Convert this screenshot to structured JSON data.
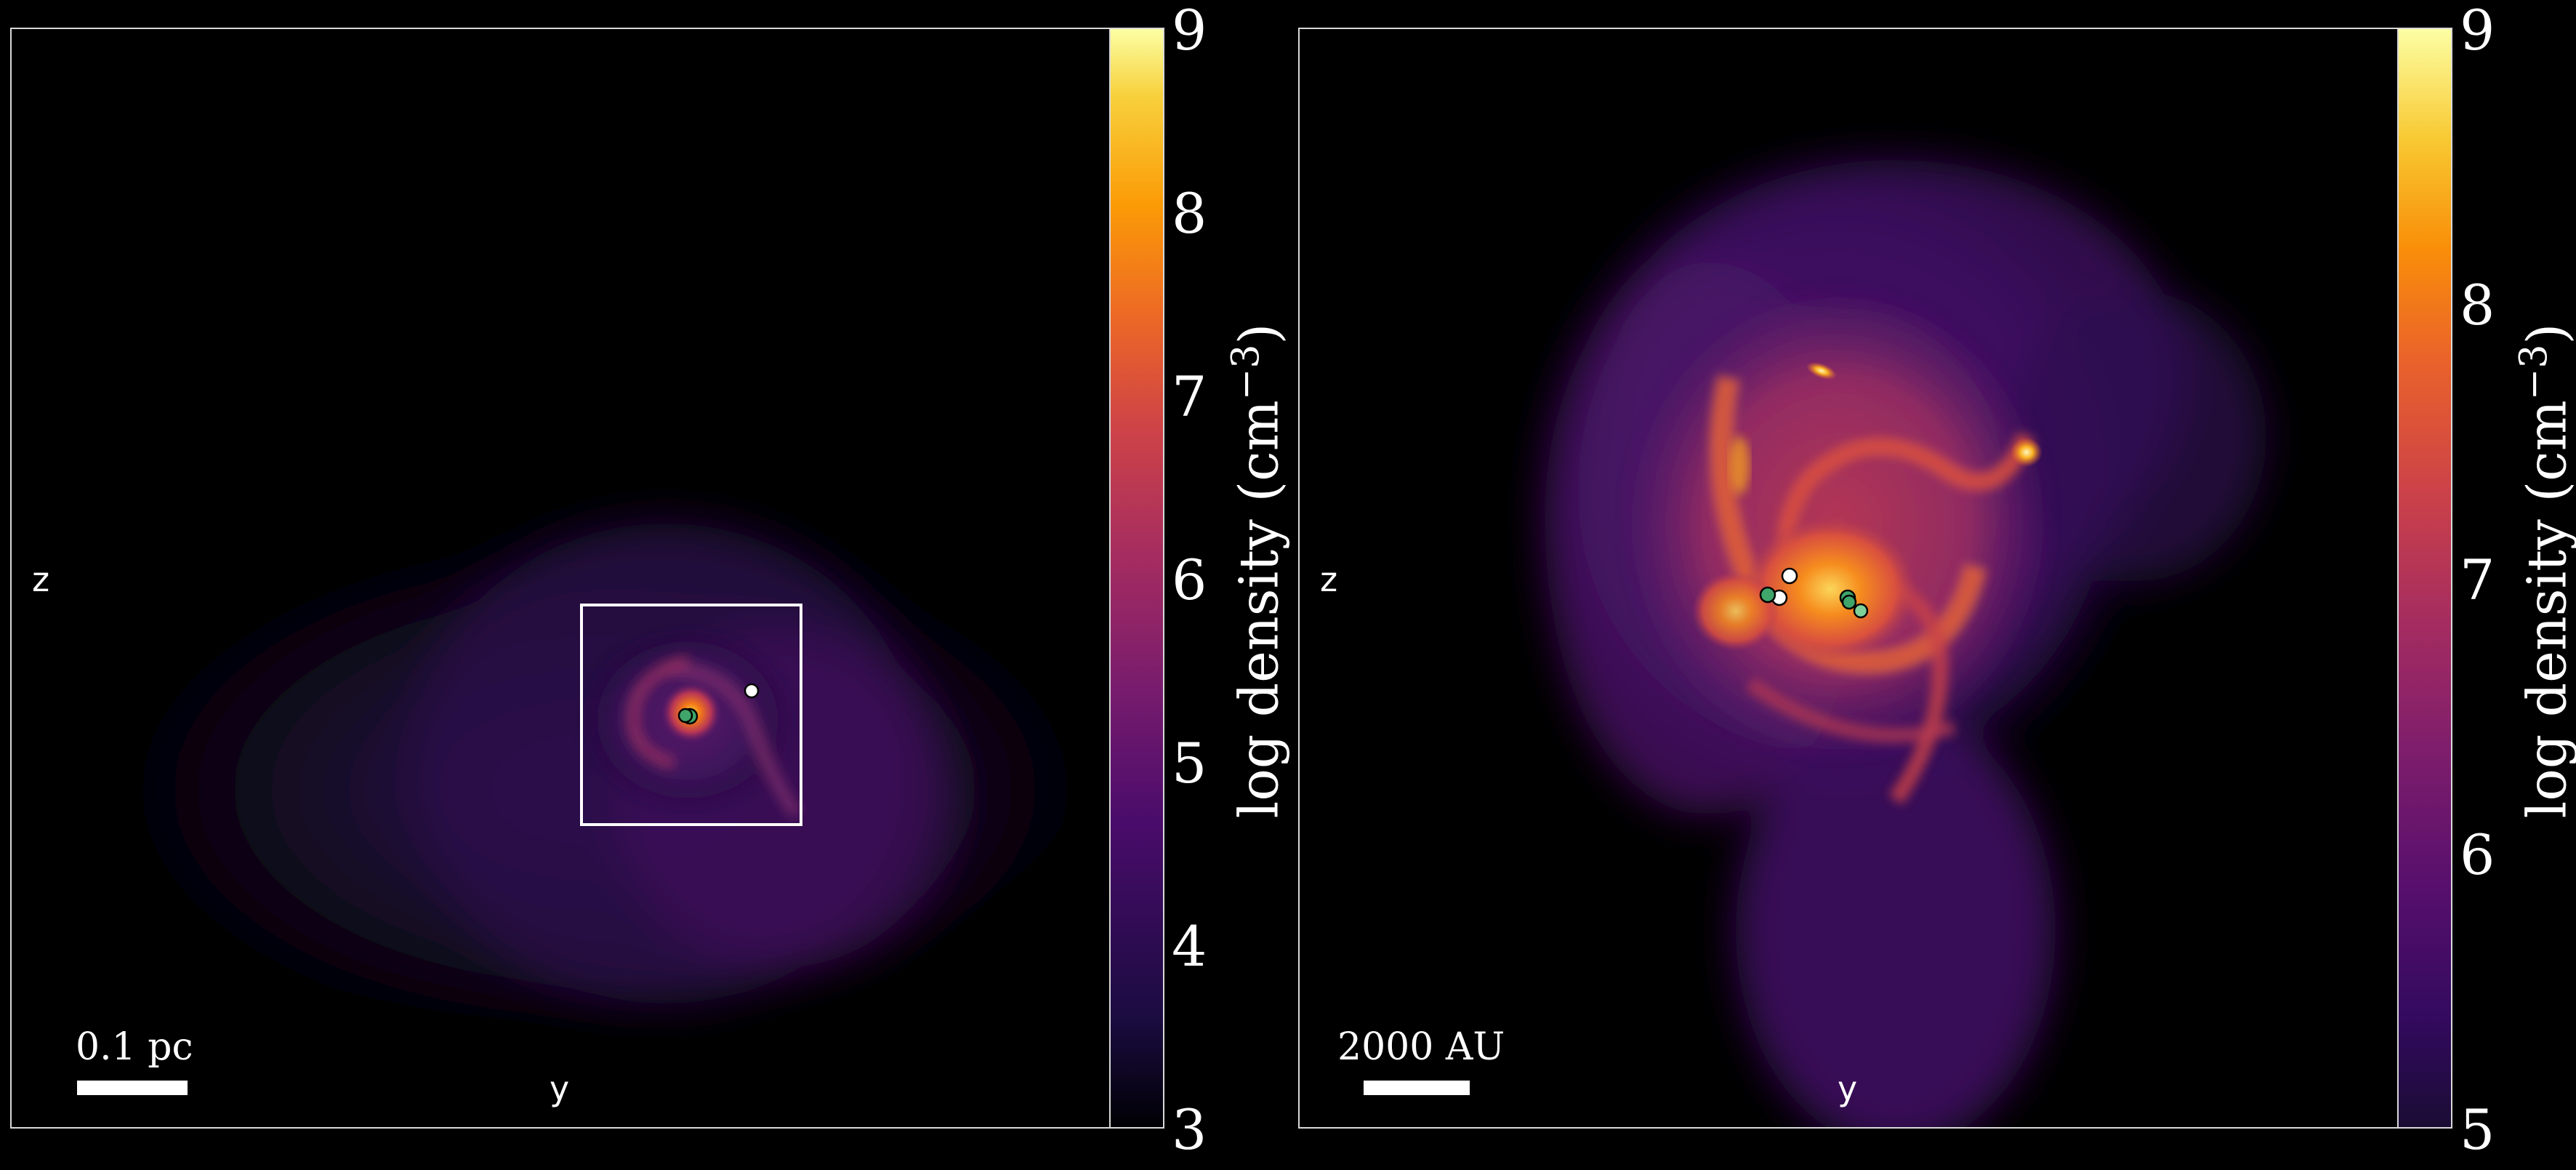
{
  "left_panel": {
    "axis_z": "z",
    "axis_y": "y",
    "scalebar_label": "0.1 pc",
    "colorbar": {
      "ticks": [
        "9",
        "8",
        "7",
        "6",
        "5",
        "4",
        "3"
      ],
      "label_main": "log density (cm",
      "label_exp": "−3",
      "label_end": ")"
    }
  },
  "right_panel": {
    "axis_z": "z",
    "axis_y": "y",
    "scalebar_label": "2000 AU",
    "colorbar": {
      "ticks": [
        "9",
        "8",
        "7",
        "6",
        "5"
      ],
      "label_main": "log density (cm",
      "label_exp": "−3",
      "label_end": ")"
    }
  },
  "colors": {
    "background": "#000000",
    "frame": "#d8d8d8",
    "sink_green": "#3fa56a",
    "sink_white": "#ffffff",
    "colormap": "inferno"
  }
}
